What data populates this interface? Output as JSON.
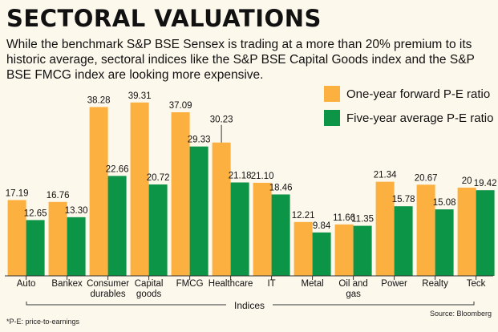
{
  "chart_data": {
    "type": "bar",
    "title": "SECTORAL VALUATIONS",
    "subtitle": "While the benchmark S&P BSE Sensex is trading at a more than 20% premium to its historic average, sectoral indices like the S&P BSE Capital Goods index and the S&P BSE FMCG index are looking more expensive.",
    "xlabel": "Indices",
    "ylabel": "",
    "ylim": [
      0,
      42
    ],
    "categories": [
      [
        "Auto"
      ],
      [
        "Bankex"
      ],
      [
        "Consumer",
        "durables"
      ],
      [
        "Capital",
        "goods"
      ],
      [
        "FMCG"
      ],
      [
        "Healthcare"
      ],
      [
        "IT"
      ],
      [
        "Metal"
      ],
      [
        "Oil and",
        "gas"
      ],
      [
        "Power"
      ],
      [
        "Realty"
      ],
      [
        "Teck"
      ]
    ],
    "series": [
      {
        "name": "One-year forward P-E ratio",
        "color": "#fbb040",
        "values": [
          17.19,
          16.76,
          38.28,
          39.31,
          37.09,
          30.23,
          21.1,
          12.21,
          11.66,
          21.34,
          20.67,
          20
        ],
        "labels": [
          "17.19",
          "16.76",
          "38.28",
          "39.31",
          "37.09",
          "30.23",
          "21.10",
          "12.21",
          "11.66",
          "21.34",
          "20.67",
          "20"
        ]
      },
      {
        "name": "Five-year average P-E ratio",
        "color": "#0c9447",
        "values": [
          12.65,
          13.3,
          22.66,
          20.72,
          29.33,
          21.18,
          18.46,
          9.84,
          11.35,
          15.78,
          15.08,
          19.42
        ],
        "labels": [
          "12.65",
          "13.30",
          "22.66",
          "20.72",
          "29.33",
          "21.18",
          "18.46",
          "9.84",
          "11.35",
          "15.78",
          "15.08",
          "19.42"
        ]
      }
    ],
    "legend_position": "top-right"
  },
  "footnote": "*P-E: price-to-earnings",
  "source": "Source: Bloomberg"
}
